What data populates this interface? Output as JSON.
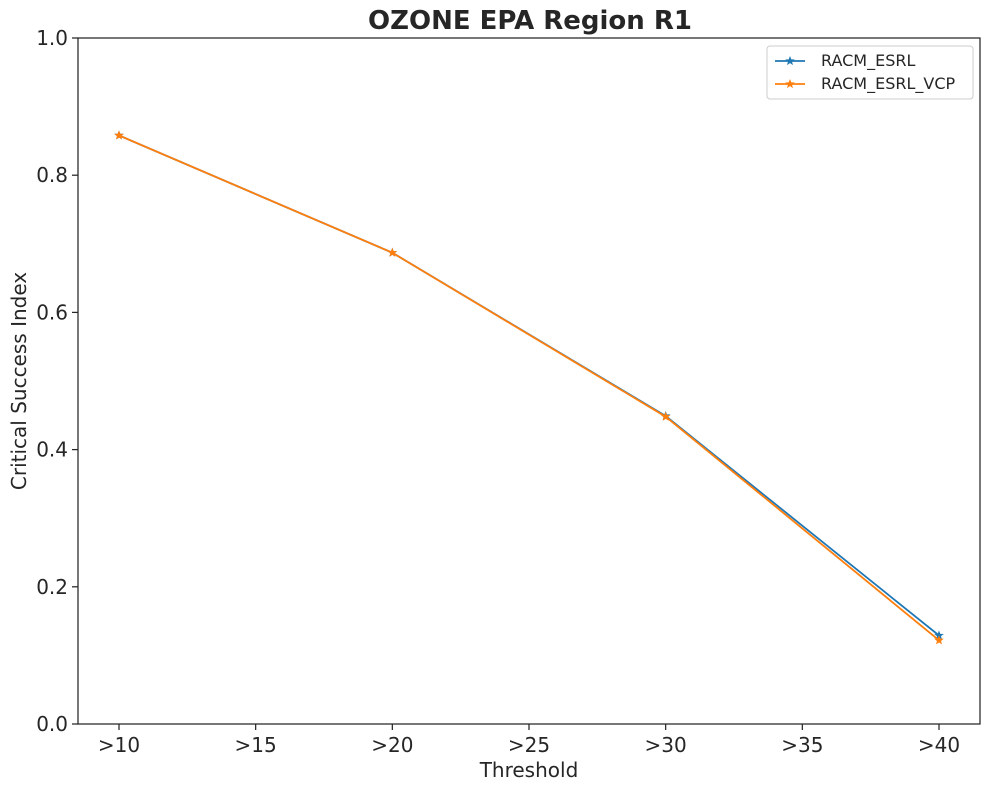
{
  "chart_data": {
    "type": "line",
    "title": "OZONE EPA Region R1",
    "xlabel": "Threshold",
    "ylabel": "Critical Success Index",
    "x_ticks": [
      ">10",
      ">15",
      ">20",
      ">25",
      ">30",
      ">35",
      ">40"
    ],
    "x_values": [
      10,
      20,
      30,
      40
    ],
    "y_ticks": [
      "0.0",
      "0.2",
      "0.4",
      "0.6",
      "0.8",
      "1.0"
    ],
    "ylim": [
      0,
      1
    ],
    "xlim": [
      8.5,
      41.5
    ],
    "grid": false,
    "legend_position": "top-right",
    "marker": "star",
    "series": [
      {
        "name": "RACM_ESRL",
        "color": "#1f77b4",
        "values": [
          0.858,
          0.687,
          0.449,
          0.129
        ]
      },
      {
        "name": "RACM_ESRL_VCP",
        "color": "#ff7f0e",
        "values": [
          0.858,
          0.687,
          0.448,
          0.122
        ]
      }
    ]
  }
}
